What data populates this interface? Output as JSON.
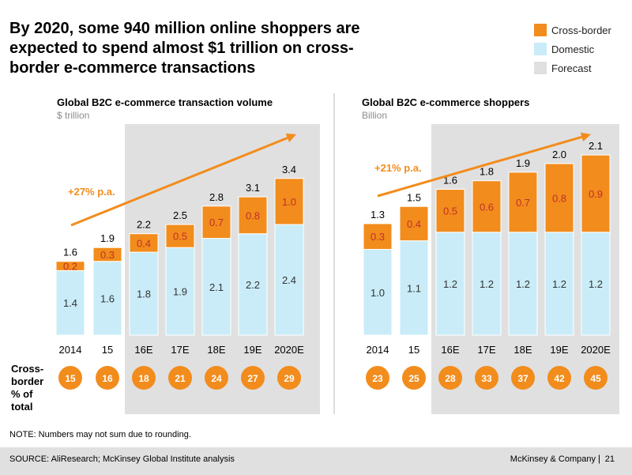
{
  "title": "By 2020, some 940 million online shoppers are expected to spend almost $1 trillion on cross-border e-commerce transactions",
  "legend": [
    {
      "label": "Cross-border",
      "color": "#f28c1c"
    },
    {
      "label": "Domestic",
      "color": "#c9ecf8"
    },
    {
      "label": "Forecast",
      "color": "#e0e0e0"
    }
  ],
  "row_label": "Cross-border % of total",
  "note": "NOTE: Numbers may not sum due to rounding.",
  "footer": {
    "source": "SOURCE: AliResearch; McKinsey Global Institute analysis",
    "brand": "McKinsey & Company",
    "separator": "|",
    "page": "21"
  },
  "chart_data": [
    {
      "type": "bar",
      "stacked": true,
      "title": "Global B2C e-commerce transaction volume",
      "subtitle": "$ trillion",
      "categories": [
        "2014",
        "15",
        "16E",
        "17E",
        "18E",
        "19E",
        "2020E"
      ],
      "forecast_categories": [
        "16E",
        "17E",
        "18E",
        "19E",
        "2020E"
      ],
      "series": [
        {
          "name": "Domestic",
          "values": [
            1.4,
            1.6,
            1.8,
            1.9,
            2.1,
            2.2,
            2.4
          ]
        },
        {
          "name": "Cross-border",
          "values": [
            0.2,
            0.3,
            0.4,
            0.5,
            0.7,
            0.8,
            1.0
          ]
        }
      ],
      "totals": [
        1.6,
        1.9,
        2.2,
        2.5,
        2.8,
        3.1,
        3.4
      ],
      "cross_border_pct": [
        15,
        16,
        18,
        21,
        24,
        27,
        29
      ],
      "growth_annotation": "+27% p.a.",
      "ylim": [
        0,
        3.4
      ]
    },
    {
      "type": "bar",
      "stacked": true,
      "title": "Global B2C e-commerce shoppers",
      "subtitle": "Billion",
      "categories": [
        "2014",
        "15",
        "16E",
        "17E",
        "18E",
        "19E",
        "2020E"
      ],
      "forecast_categories": [
        "16E",
        "17E",
        "18E",
        "19E",
        "2020E"
      ],
      "series": [
        {
          "name": "Domestic",
          "values": [
            1.0,
            1.1,
            1.2,
            1.2,
            1.2,
            1.2,
            1.2
          ]
        },
        {
          "name": "Cross-border",
          "values": [
            0.3,
            0.4,
            0.5,
            0.6,
            0.7,
            0.8,
            0.9
          ]
        }
      ],
      "totals": [
        1.3,
        1.5,
        1.6,
        1.8,
        1.9,
        2.0,
        2.1
      ],
      "cross_border_pct": [
        23,
        25,
        28,
        33,
        37,
        42,
        45
      ],
      "growth_annotation": "+21% p.a.",
      "ylim": [
        0,
        2.1
      ]
    }
  ]
}
